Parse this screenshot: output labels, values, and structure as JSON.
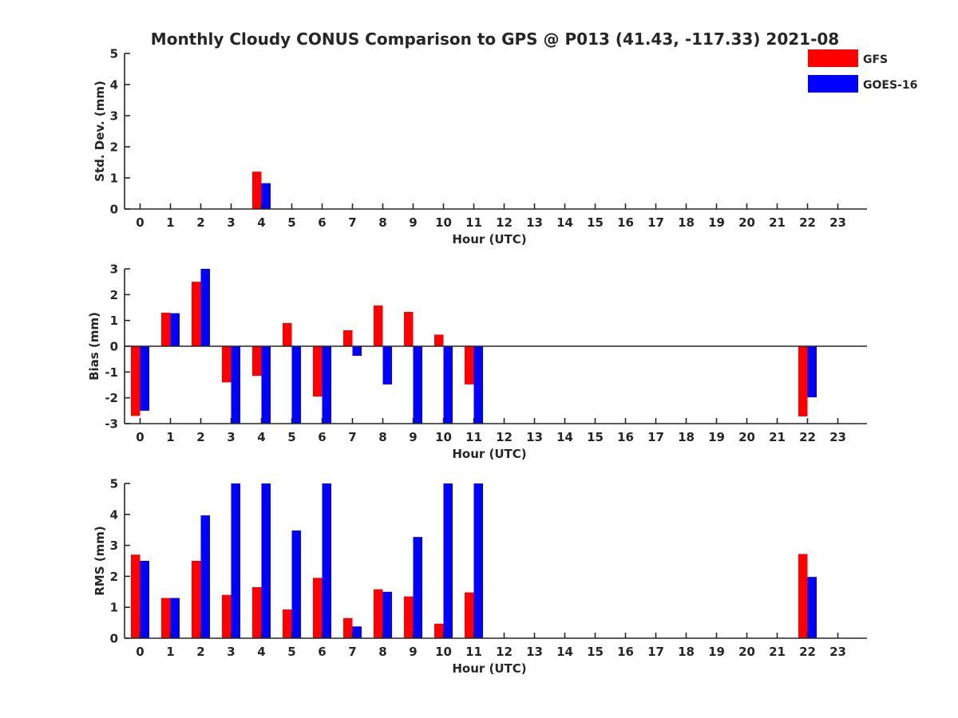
{
  "title": "Monthly Cloudy CONUS Comparison to GPS @ P013 (41.43, -117.33) 2021-08",
  "legend": [
    {
      "name": "GFS",
      "color": "#ff0000"
    },
    {
      "name": "GOES-16",
      "color": "#0000ff"
    }
  ],
  "chart_data": [
    {
      "type": "bar",
      "ylabel": "Std. Dev. (mm)",
      "xlabel": "Hour (UTC)",
      "ylim": [
        0,
        5
      ],
      "yticks": [
        "0",
        "1",
        "2",
        "3",
        "4",
        "5"
      ],
      "categories": [
        "0",
        "1",
        "2",
        "3",
        "4",
        "5",
        "6",
        "7",
        "8",
        "9",
        "10",
        "11",
        "12",
        "13",
        "14",
        "15",
        "16",
        "17",
        "18",
        "19",
        "20",
        "21",
        "22",
        "23"
      ],
      "series": [
        {
          "name": "GFS",
          "values": [
            null,
            null,
            null,
            null,
            1.2,
            null,
            null,
            null,
            null,
            null,
            null,
            null,
            null,
            null,
            null,
            null,
            null,
            null,
            null,
            null,
            null,
            null,
            null,
            null
          ]
        },
        {
          "name": "GOES-16",
          "values": [
            null,
            null,
            null,
            null,
            0.83,
            null,
            null,
            null,
            null,
            null,
            null,
            null,
            null,
            null,
            null,
            null,
            null,
            null,
            null,
            null,
            null,
            null,
            null,
            null
          ]
        }
      ]
    },
    {
      "type": "bar",
      "ylabel": "Bias (mm)",
      "xlabel": "Hour (UTC)",
      "ylim": [
        -3,
        3
      ],
      "yticks": [
        "-3",
        "-2",
        "-1",
        "0",
        "1",
        "2",
        "3"
      ],
      "categories": [
        "0",
        "1",
        "2",
        "3",
        "4",
        "5",
        "6",
        "7",
        "8",
        "9",
        "10",
        "11",
        "12",
        "13",
        "14",
        "15",
        "16",
        "17",
        "18",
        "19",
        "20",
        "21",
        "22",
        "23"
      ],
      "series": [
        {
          "name": "GFS",
          "values": [
            -2.7,
            1.3,
            2.5,
            -1.4,
            -1.15,
            0.9,
            -1.95,
            0.62,
            1.58,
            1.33,
            0.45,
            -1.48,
            null,
            null,
            null,
            null,
            null,
            null,
            null,
            null,
            null,
            null,
            -2.72,
            null
          ]
        },
        {
          "name": "GOES-16",
          "values": [
            -2.5,
            1.28,
            3.0,
            -3.0,
            -3.0,
            -3.0,
            -3.0,
            -0.37,
            -1.48,
            -3.0,
            -3.0,
            -3.0,
            null,
            null,
            null,
            null,
            null,
            null,
            null,
            null,
            null,
            null,
            -1.98,
            null
          ]
        }
      ]
    },
    {
      "type": "bar",
      "ylabel": "RMS (mm)",
      "xlabel": "Hour (UTC)",
      "ylim": [
        0,
        5
      ],
      "yticks": [
        "0",
        "1",
        "2",
        "3",
        "4",
        "5"
      ],
      "categories": [
        "0",
        "1",
        "2",
        "3",
        "4",
        "5",
        "6",
        "7",
        "8",
        "9",
        "10",
        "11",
        "12",
        "13",
        "14",
        "15",
        "16",
        "17",
        "18",
        "19",
        "20",
        "21",
        "22",
        "23"
      ],
      "series": [
        {
          "name": "GFS",
          "values": [
            2.7,
            1.3,
            2.5,
            1.4,
            1.65,
            0.93,
            1.95,
            0.65,
            1.58,
            1.35,
            0.47,
            1.48,
            null,
            null,
            null,
            null,
            null,
            null,
            null,
            null,
            null,
            null,
            2.72,
            null
          ]
        },
        {
          "name": "GOES-16",
          "values": [
            2.5,
            1.3,
            3.97,
            5.0,
            5.0,
            3.48,
            5.0,
            0.38,
            1.5,
            3.27,
            5.0,
            5.0,
            null,
            null,
            null,
            null,
            null,
            null,
            null,
            null,
            null,
            null,
            1.98,
            null
          ]
        }
      ]
    }
  ]
}
